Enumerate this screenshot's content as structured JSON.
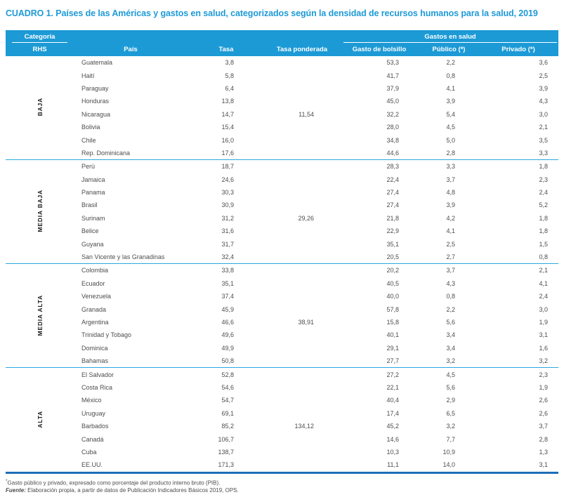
{
  "title": "CUADRO 1. Países de las Américas y gastos en salud, categorizados según la densidad de recursos humanos para la salud, 2019",
  "colors": {
    "header_bg": "#1C9AD6",
    "title": "#1E9AD7",
    "separator": "#2AA9DF",
    "bottom_rule": "#1D6EB8",
    "text": "#4D4D4F",
    "group_label": "#1A1A1A"
  },
  "table": {
    "header": {
      "categoria": "Categoría",
      "rhs": "RHS",
      "pais": "País",
      "tasa": "Tasa",
      "tasa_ponderada": "Tasa ponderada",
      "gastos_en_salud": "Gastos en salud",
      "gasto_bolsillo": "Gasto de bolsillo",
      "publico": "Público (*)",
      "privado": "Privado (*)"
    },
    "groups": [
      {
        "label": "BAJA",
        "rows": [
          {
            "pais": "Guatemala",
            "tasa": "3,8",
            "tasa_ponderada": "",
            "bolsillo": "53,3",
            "publico": "2,2",
            "privado": "3,6"
          },
          {
            "pais": "Haití",
            "tasa": "5,8",
            "tasa_ponderada": "",
            "bolsillo": "41,7",
            "publico": "0,8",
            "privado": "2,5"
          },
          {
            "pais": "Paraguay",
            "tasa": "6,4",
            "tasa_ponderada": "",
            "bolsillo": "37,9",
            "publico": "4,1",
            "privado": "3,9"
          },
          {
            "pais": "Honduras",
            "tasa": "13,8",
            "tasa_ponderada": "",
            "bolsillo": "45,0",
            "publico": "3,9",
            "privado": "4,3"
          },
          {
            "pais": "Nicaragua",
            "tasa": "14,7",
            "tasa_ponderada": "11,54",
            "bolsillo": "32,2",
            "publico": "5,4",
            "privado": "3,0"
          },
          {
            "pais": "Bolivia",
            "tasa": "15,4",
            "tasa_ponderada": "",
            "bolsillo": "28,0",
            "publico": "4,5",
            "privado": "2,1"
          },
          {
            "pais": "Chile",
            "tasa": "16,0",
            "tasa_ponderada": "",
            "bolsillo": "34,8",
            "publico": "5,0",
            "privado": "3,5"
          },
          {
            "pais": "Rep. Dominicana",
            "tasa": "17,6",
            "tasa_ponderada": "",
            "bolsillo": "44,6",
            "publico": "2,8",
            "privado": "3,3"
          }
        ]
      },
      {
        "label": "MEDIA BAJA",
        "rows": [
          {
            "pais": "Perú",
            "tasa": "18,7",
            "tasa_ponderada": "",
            "bolsillo": "28,3",
            "publico": "3,3",
            "privado": "1,8"
          },
          {
            "pais": "Jamaica",
            "tasa": "24,6",
            "tasa_ponderada": "",
            "bolsillo": "22,4",
            "publico": "3,7",
            "privado": "2,3"
          },
          {
            "pais": "Panama",
            "tasa": "30,3",
            "tasa_ponderada": "",
            "bolsillo": "27,4",
            "publico": "4,8",
            "privado": "2,4"
          },
          {
            "pais": "Brasil",
            "tasa": "30,9",
            "tasa_ponderada": "",
            "bolsillo": "27,4",
            "publico": "3,9",
            "privado": "5,2"
          },
          {
            "pais": "Surinam",
            "tasa": "31,2",
            "tasa_ponderada": "29,26",
            "bolsillo": "21,8",
            "publico": "4,2",
            "privado": "1,8"
          },
          {
            "pais": "Belice",
            "tasa": "31,6",
            "tasa_ponderada": "",
            "bolsillo": "22,9",
            "publico": "4,1",
            "privado": "1,8"
          },
          {
            "pais": "Guyana",
            "tasa": "31,7",
            "tasa_ponderada": "",
            "bolsillo": "35,1",
            "publico": "2,5",
            "privado": "1,5"
          },
          {
            "pais": "San Vicente y las Granadinas",
            "tasa": "32,4",
            "tasa_ponderada": "",
            "bolsillo": "20,5",
            "publico": "2,7",
            "privado": "0,8"
          }
        ]
      },
      {
        "label": "MEDIA ALTA",
        "rows": [
          {
            "pais": "Colombia",
            "tasa": "33,8",
            "tasa_ponderada": "",
            "bolsillo": "20,2",
            "publico": "3,7",
            "privado": "2,1"
          },
          {
            "pais": "Ecuador",
            "tasa": "35,1",
            "tasa_ponderada": "",
            "bolsillo": "40,5",
            "publico": "4,3",
            "privado": "4,1"
          },
          {
            "pais": "Venezuela",
            "tasa": "37,4",
            "tasa_ponderada": "",
            "bolsillo": "40,0",
            "publico": "0,8",
            "privado": "2,4"
          },
          {
            "pais": "Granada",
            "tasa": "45,9",
            "tasa_ponderada": "",
            "bolsillo": "57,8",
            "publico": "2,2",
            "privado": "3,0"
          },
          {
            "pais": "Argentina",
            "tasa": "46,6",
            "tasa_ponderada": "38,91",
            "bolsillo": "15,8",
            "publico": "5,6",
            "privado": "1,9"
          },
          {
            "pais": "Trinidad y Tobago",
            "tasa": "49,6",
            "tasa_ponderada": "",
            "bolsillo": "40,1",
            "publico": "3,4",
            "privado": "3,1"
          },
          {
            "pais": "Dominica",
            "tasa": "49,9",
            "tasa_ponderada": "",
            "bolsillo": "29,1",
            "publico": "3,4",
            "privado": "1,6"
          },
          {
            "pais": "Bahamas",
            "tasa": "50,8",
            "tasa_ponderada": "",
            "bolsillo": "27,7",
            "publico": "3,2",
            "privado": "3,2"
          }
        ]
      },
      {
        "label": "ALTA",
        "rows": [
          {
            "pais": "El Salvador",
            "tasa": "52,8",
            "tasa_ponderada": "",
            "bolsillo": "27,2",
            "publico": "4,5",
            "privado": "2,3"
          },
          {
            "pais": "Costa Rica",
            "tasa": "54,6",
            "tasa_ponderada": "",
            "bolsillo": "22,1",
            "publico": "5,6",
            "privado": "1,9"
          },
          {
            "pais": "México",
            "tasa": "54,7",
            "tasa_ponderada": "",
            "bolsillo": "40,4",
            "publico": "2,9",
            "privado": "2,6"
          },
          {
            "pais": "Uruguay",
            "tasa": "69,1",
            "tasa_ponderada": "",
            "bolsillo": "17,4",
            "publico": "6,5",
            "privado": "2,6"
          },
          {
            "pais": "Barbados",
            "tasa": "85,2",
            "tasa_ponderada": "134,12",
            "bolsillo": "45,2",
            "publico": "3,2",
            "privado": "3,7"
          },
          {
            "pais": "Canadá",
            "tasa": "106,7",
            "tasa_ponderada": "",
            "bolsillo": "14,6",
            "publico": "7,7",
            "privado": "2,8"
          },
          {
            "pais": "Cuba",
            "tasa": "138,7",
            "tasa_ponderada": "",
            "bolsillo": "10,3",
            "publico": "10,9",
            "privado": "1,3"
          },
          {
            "pais": "EE.UU.",
            "tasa": "171,3",
            "tasa_ponderada": "",
            "bolsillo": "11,1",
            "publico": "14,0",
            "privado": "3,1"
          }
        ]
      }
    ]
  },
  "footnotes": {
    "note_symbol": "*",
    "note_text": "Gasto público y privado, expresado como porcentaje del producto interno bruto (PIB).",
    "fuente_label": "Fuente:",
    "fuente_text": " Elaboración propia, a partir de datos de Publicación Indicadores Básicos 2019, OPS."
  }
}
